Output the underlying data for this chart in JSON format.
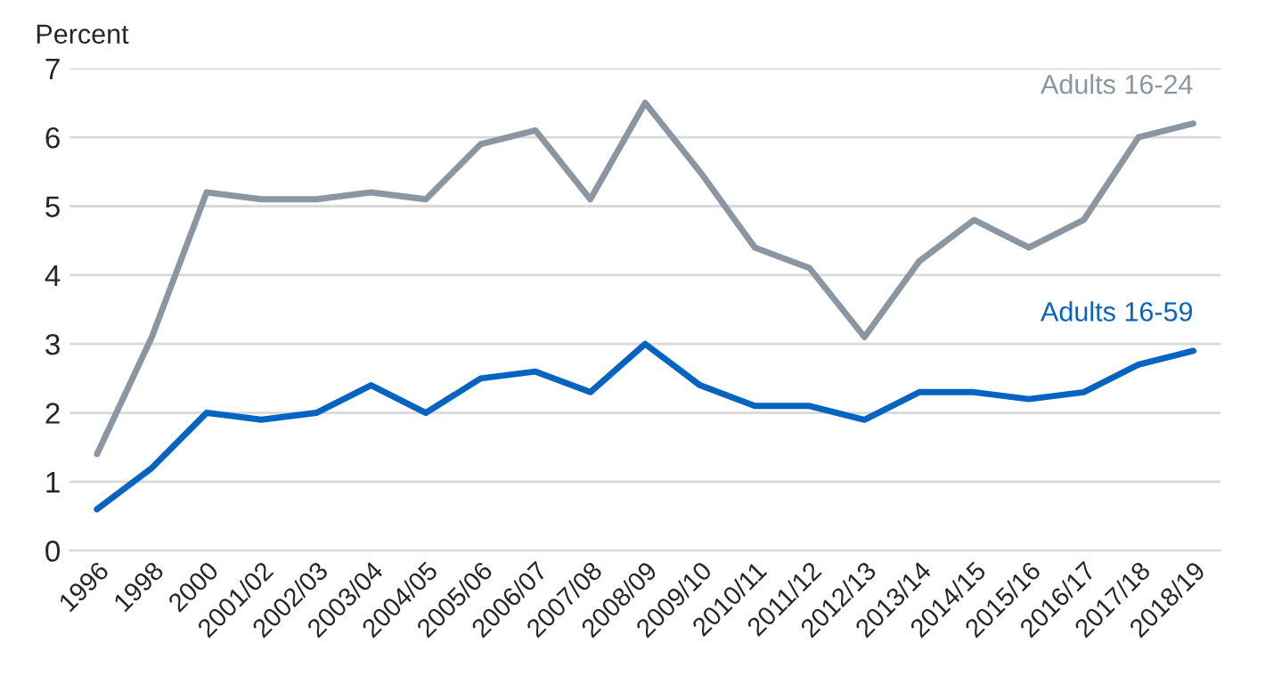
{
  "chart_data": {
    "type": "line",
    "ylabel": "Percent",
    "categories": [
      "1996",
      "1998",
      "2000",
      "2001/02",
      "2002/03",
      "2003/04",
      "2004/05",
      "2005/06",
      "2006/07",
      "2007/08",
      "2008/09",
      "2009/10",
      "2010/11",
      "2011/12",
      "2012/13",
      "2013/14",
      "2014/15",
      "2015/16",
      "2016/17",
      "2017/18",
      "2018/19"
    ],
    "series": [
      {
        "name": "Adults 16-24",
        "color": "#8a96a1",
        "values": [
          1.4,
          3.1,
          5.2,
          5.1,
          5.1,
          5.2,
          5.1,
          5.9,
          6.1,
          5.1,
          6.5,
          5.5,
          4.4,
          4.1,
          3.1,
          4.2,
          4.8,
          4.4,
          4.8,
          6.0,
          6.2
        ]
      },
      {
        "name": "Adults 16-59",
        "color": "#0563c1",
        "values": [
          0.6,
          1.2,
          2.0,
          1.9,
          2.0,
          2.4,
          2.0,
          2.5,
          2.6,
          2.3,
          3.0,
          2.4,
          2.1,
          2.1,
          1.9,
          2.3,
          2.3,
          2.2,
          2.3,
          2.7,
          2.9
        ]
      }
    ],
    "ylim": [
      0,
      7
    ],
    "yticks": [
      0,
      1,
      2,
      3,
      4,
      5,
      6,
      7
    ],
    "grid": "y",
    "legend": false,
    "marker": "none",
    "line_style": "solid"
  }
}
